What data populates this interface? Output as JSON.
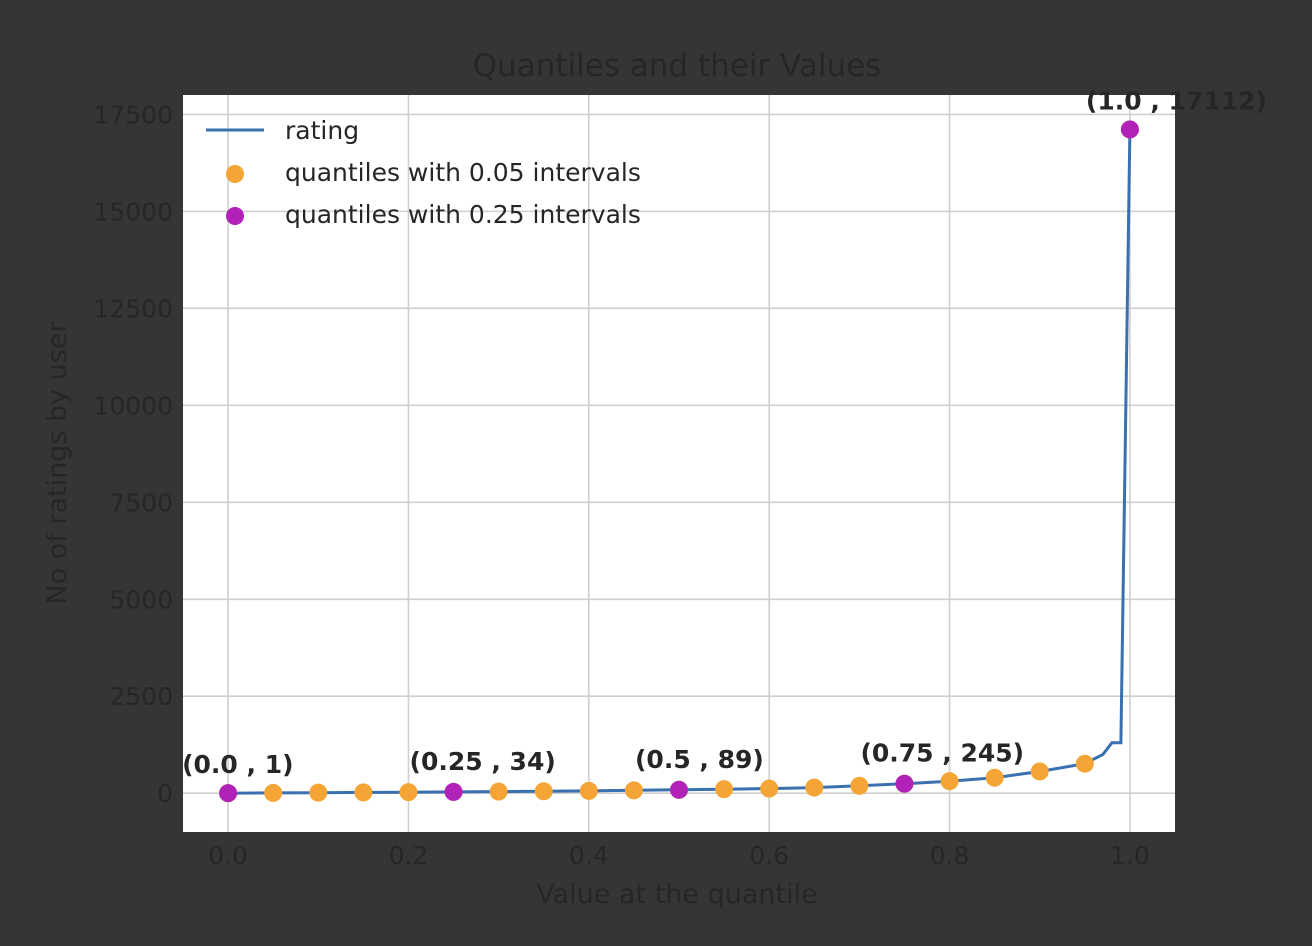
{
  "colors": {
    "background": "#353535",
    "plot_background": "#ffffff",
    "grid": "#cfcfcf",
    "line": "#3a6fb0",
    "q05": "#f5a535",
    "q25": "#b022b8",
    "text": "#262626"
  },
  "chart_data": {
    "type": "line",
    "title": "Quantiles and their Values",
    "xlabel": "Value at the quantile",
    "ylabel": "No of ratings by user",
    "xlim": [
      -0.05,
      1.05
    ],
    "ylim": [
      -1000,
      18000
    ],
    "x_ticks": [
      0.0,
      0.2,
      0.4,
      0.6,
      0.8,
      1.0
    ],
    "x_tick_labels": [
      "0.0",
      "0.2",
      "0.4",
      "0.6",
      "0.8",
      "1.0"
    ],
    "y_ticks": [
      0,
      2500,
      5000,
      7500,
      10000,
      12500,
      15000,
      17500
    ],
    "y_tick_labels": [
      "0",
      "2500",
      "5000",
      "7500",
      "10000",
      "12500",
      "15000",
      "17500"
    ],
    "grid": true,
    "legend_position": "top-left",
    "series": [
      {
        "name": "rating",
        "kind": "line",
        "x": [
          0.0,
          0.05,
          0.1,
          0.15,
          0.2,
          0.25,
          0.3,
          0.35,
          0.4,
          0.45,
          0.5,
          0.55,
          0.6,
          0.65,
          0.7,
          0.75,
          0.8,
          0.85,
          0.9,
          0.95,
          0.97,
          0.98,
          0.99,
          1.0
        ],
        "y": [
          1,
          8,
          14,
          20,
          27,
          34,
          42,
          50,
          60,
          74,
          89,
          104,
          120,
          145,
          190,
          245,
          310,
          400,
          560,
          760,
          1000,
          1300,
          1300,
          17112
        ]
      },
      {
        "name": "quantiles with 0.05 intervals",
        "kind": "scatter",
        "x": [
          0.0,
          0.05,
          0.1,
          0.15,
          0.2,
          0.25,
          0.3,
          0.35,
          0.4,
          0.45,
          0.5,
          0.55,
          0.6,
          0.65,
          0.7,
          0.75,
          0.8,
          0.85,
          0.9,
          0.95,
          1.0
        ],
        "y": [
          1,
          8,
          14,
          20,
          27,
          34,
          42,
          50,
          60,
          74,
          89,
          104,
          120,
          145,
          190,
          245,
          310,
          400,
          560,
          760,
          17112
        ]
      },
      {
        "name": "quantiles with 0.25 intervals",
        "kind": "scatter",
        "x": [
          0.0,
          0.25,
          0.5,
          0.75,
          1.0
        ],
        "y": [
          1,
          34,
          89,
          245,
          17112
        ]
      }
    ],
    "annotations": [
      "(0.0 , 1)",
      "(0.25 , 34)",
      "(0.5 , 89)",
      "(0.75 , 245)",
      "(1.0 , 17112)"
    ]
  }
}
